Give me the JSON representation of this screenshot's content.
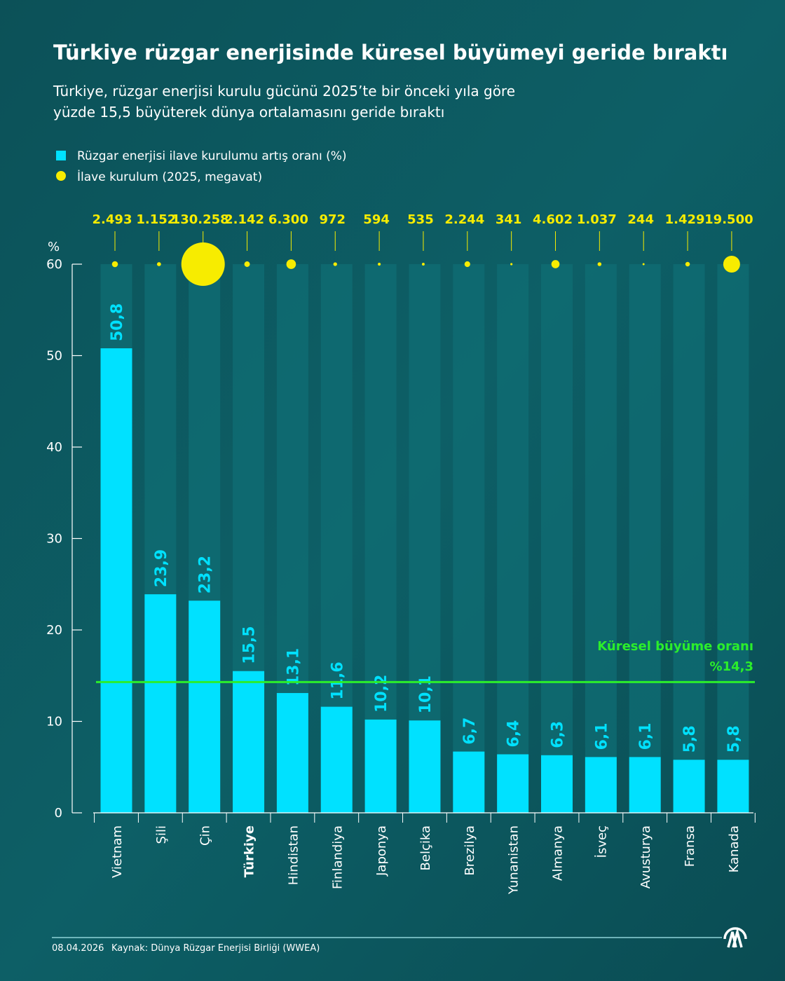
{
  "title": "Türkiye rüzgar enerjisinde küresel büyümeyi geride bıraktı",
  "subtitle_lines": [
    "Türkiye, rüzgar enerjisi kurulu gücünü 2025’te bir önceki yıla göre",
    "yüzde 15,5 büyüterek dünya ortalamasını geride bıraktı"
  ],
  "legend": {
    "bar_label": "Rüzgar enerjisi ilave kurulumu artış oranı (%)",
    "bubble_label": "İlave kurulum (2025, megavat)"
  },
  "colors": {
    "background": "#0b545b",
    "bar": "#00e1ff",
    "bubble": "#f7ec00",
    "global_line": "#2bee2b",
    "text": "#ffffff"
  },
  "chart_data": {
    "type": "bar",
    "ylabel": "%",
    "ylim": [
      0,
      60
    ],
    "yticks": [
      0,
      10,
      20,
      30,
      40,
      50,
      60
    ],
    "grid": false,
    "legend_placement": "top-left",
    "categories": [
      "Vietnam",
      "Şili",
      "Çin",
      "Türkiye",
      "Hindistan",
      "Finlandiya",
      "Japonya",
      "Belçika",
      "Brezilya",
      "Yunanistan",
      "Almanya",
      "İsveç",
      "Avusturya",
      "Fransa",
      "Kanada"
    ],
    "highlight_category": "Türkiye",
    "series": [
      {
        "name": "Rüzgar enerjisi ilave kurulumu artış oranı (%)",
        "type": "bar",
        "values": [
          50.8,
          23.9,
          23.2,
          15.5,
          13.1,
          11.6,
          10.2,
          10.1,
          6.7,
          6.4,
          6.3,
          6.1,
          6.1,
          5.8,
          5.8
        ],
        "labels": [
          "50,8",
          "23,9",
          "23,2",
          "15,5",
          "13,1",
          "11,6",
          "10,2",
          "10,1",
          "6,7",
          "6,4",
          "6,3",
          "6,1",
          "6,1",
          "5,8",
          "5,8"
        ]
      },
      {
        "name": "İlave kurulum (2025, megavat)",
        "type": "bubble",
        "values": [
          2493,
          1152,
          130258,
          2142,
          6300,
          972,
          594,
          535,
          2244,
          341,
          4602,
          1037,
          244,
          1429,
          19500
        ],
        "labels": [
          "2.493",
          "1.152",
          "130.258",
          "2.142",
          "6.300",
          "972",
          "594",
          "535",
          "2.244",
          "341",
          "4.602",
          "1.037",
          "244",
          "1.429",
          "19.500"
        ]
      }
    ],
    "reference_line": {
      "value": 14.3,
      "label": "Küresel büyüme oranı",
      "value_label": "%14,3"
    }
  },
  "footer": {
    "date": "08.04.2026",
    "source": "Kaynak: Dünya Rüzgar Enerjisi Birliği (WWEA)",
    "logo": "AA"
  }
}
